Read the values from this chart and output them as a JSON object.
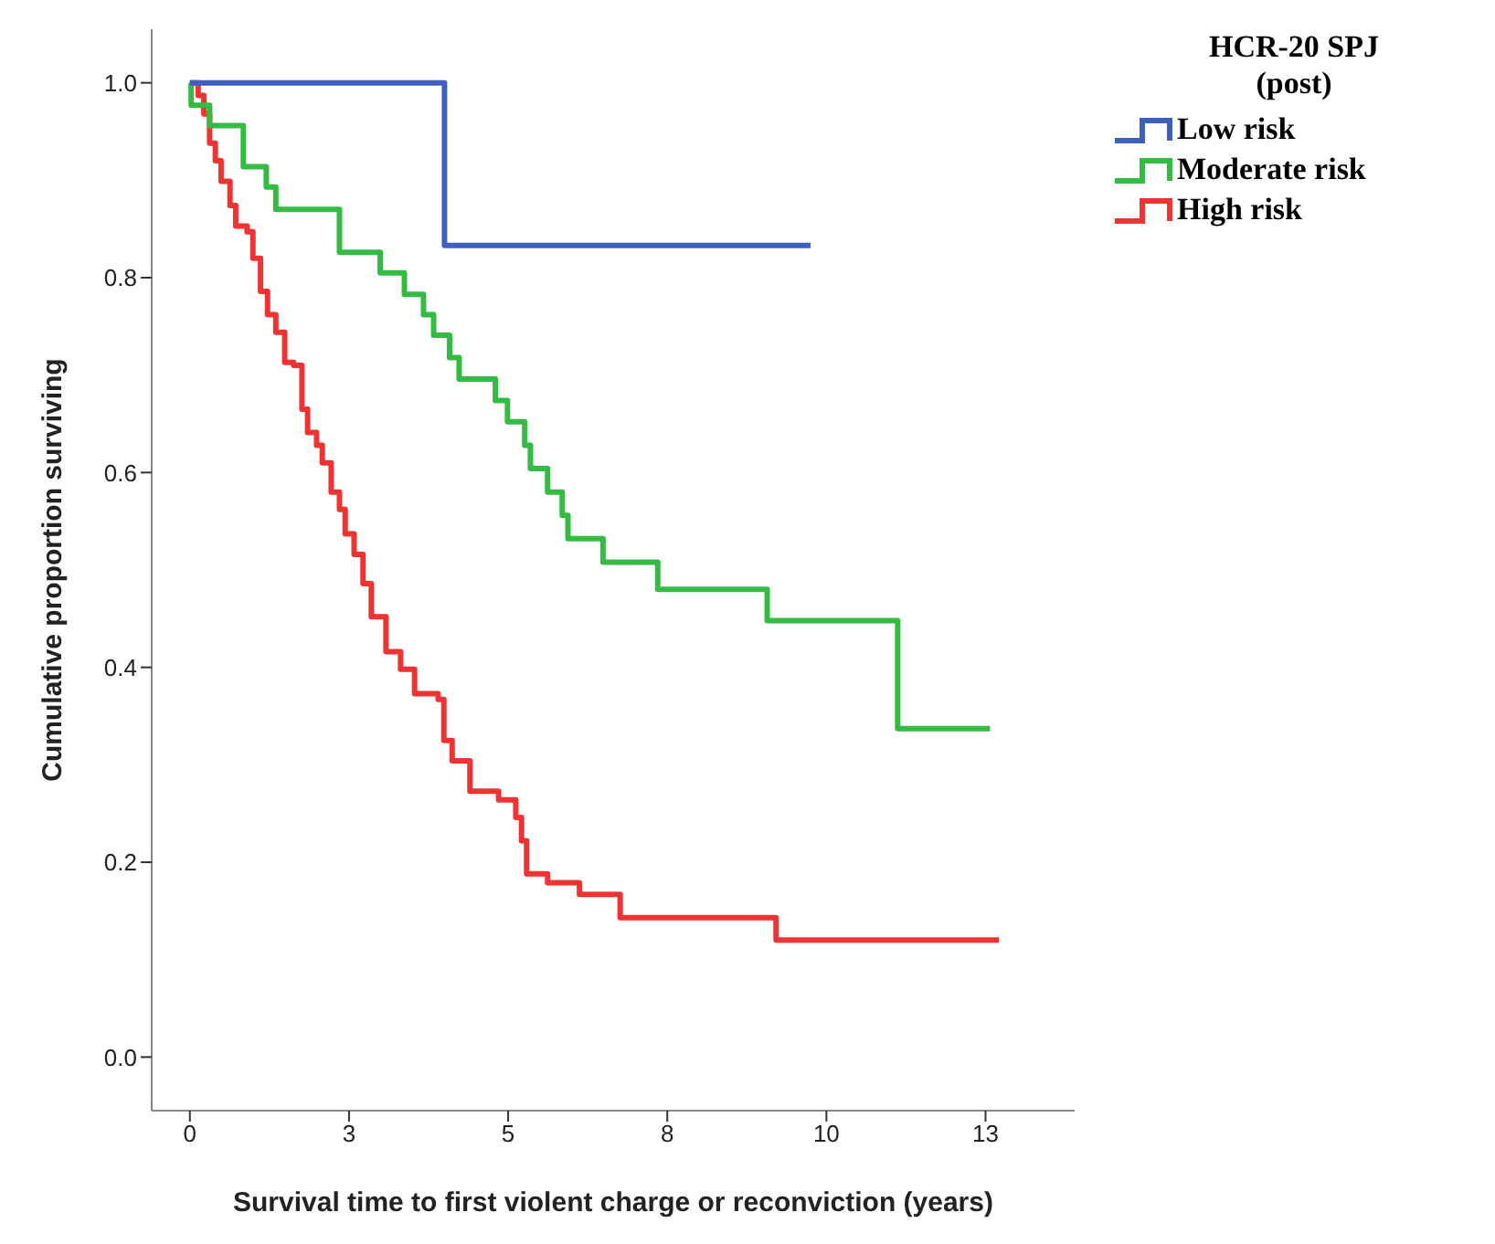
{
  "chart_data": {
    "type": "step",
    "xlabel": "Survival time to first violent charge or reconviction (years)",
    "ylabel": "Cumulative proportion surviving",
    "legend_title": "HCR-20 SPJ (post)",
    "legend": "top right",
    "marker": "none",
    "line_style": "solid",
    "xlim": [
      -0.6,
      13.9
    ],
    "xticks": [
      0,
      {
        "value": 2.5,
        "label": "3"
      },
      5,
      {
        "value": 7.5,
        "label": "8"
      },
      10,
      {
        "value": 12.5,
        "label": "13"
      }
    ],
    "ylim": [
      -0.055,
      1.055
    ],
    "yticks": [
      {
        "value": 0,
        "label": "0.0"
      },
      0.2,
      0.4,
      0.6,
      0.8,
      {
        "value": 1,
        "label": "1.0"
      }
    ],
    "series": [
      {
        "name": "Low risk",
        "color": "#3f5fbf",
        "x": [
          0,
          4.0,
          9.75
        ],
        "values": [
          1.0,
          0.833,
          0.833
        ]
      },
      {
        "name": "Moderate risk",
        "color": "#33bb44",
        "x": [
          0,
          0.02,
          0.31,
          0.84,
          1.2,
          1.35,
          2.35,
          2.99,
          3.37,
          3.67,
          3.83,
          4.08,
          4.23,
          4.8,
          4.99,
          5.26,
          5.35,
          5.62,
          5.85,
          5.94,
          6.49,
          7.35,
          9.07,
          11.12,
          12.57
        ],
        "values": [
          1.0,
          0.977,
          0.956,
          0.914,
          0.893,
          0.87,
          0.826,
          0.805,
          0.783,
          0.762,
          0.741,
          0.718,
          0.696,
          0.674,
          0.652,
          0.628,
          0.604,
          0.58,
          0.556,
          0.532,
          0.508,
          0.48,
          0.448,
          0.337,
          0.337
        ]
      },
      {
        "name": "High risk",
        "color": "#ee3333",
        "x": [
          0,
          0.13,
          0.22,
          0.31,
          0.4,
          0.49,
          0.63,
          0.72,
          0.9,
          0.99,
          1.11,
          1.22,
          1.35,
          1.49,
          1.63,
          1.76,
          1.85,
          1.99,
          2.08,
          2.22,
          2.35,
          2.44,
          2.58,
          2.72,
          2.85,
          3.08,
          3.31,
          3.53,
          3.9,
          3.99,
          4.12,
          4.4,
          4.85,
          5.12,
          5.21,
          5.29,
          5.62,
          6.12,
          6.76,
          9.21,
          12.71
        ],
        "values": [
          1.0,
          0.987,
          0.968,
          0.938,
          0.92,
          0.899,
          0.874,
          0.853,
          0.847,
          0.82,
          0.786,
          0.762,
          0.744,
          0.713,
          0.71,
          0.665,
          0.641,
          0.628,
          0.61,
          0.58,
          0.562,
          0.537,
          0.516,
          0.486,
          0.452,
          0.416,
          0.398,
          0.373,
          0.367,
          0.325,
          0.304,
          0.273,
          0.264,
          0.246,
          0.222,
          0.188,
          0.179,
          0.167,
          0.143,
          0.12,
          0.12
        ]
      }
    ]
  }
}
